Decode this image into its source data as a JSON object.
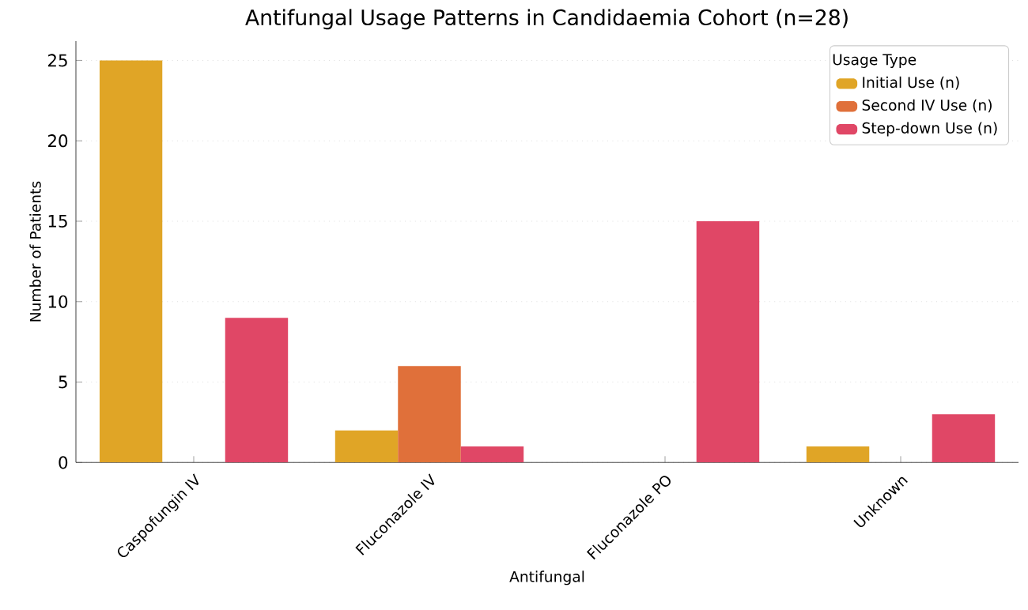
{
  "chart_data": {
    "type": "bar",
    "title": "Antifungal Usage Patterns in Candidaemia Cohort (n=28)",
    "xlabel": "Antifungal",
    "ylabel": "Number of Patients",
    "legend_title": "Usage Type",
    "categories": [
      "Caspofungin IV",
      "Fluconazole IV",
      "Fluconazole PO",
      "Unknown"
    ],
    "series": [
      {
        "name": "Initial Use (n)",
        "color": "#e0a526",
        "values": [
          25,
          2,
          0,
          1
        ]
      },
      {
        "name": "Second IV Use (n)",
        "color": "#e0703a",
        "values": [
          0,
          6,
          0,
          0
        ]
      },
      {
        "name": "Step-down Use (n)",
        "color": "#e04766",
        "values": [
          9,
          1,
          15,
          3
        ]
      }
    ],
    "ylim": [
      0,
      26.2
    ],
    "yticks": [
      0,
      5,
      10,
      15,
      20,
      25
    ],
    "grid": "y",
    "legend": "top right"
  }
}
